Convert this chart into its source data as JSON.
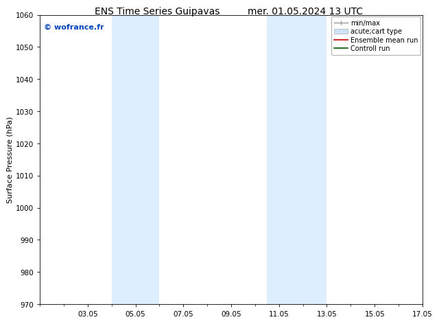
{
  "title_left": "ENS Time Series Guipavas",
  "title_right": "mer. 01.05.2024 13 UTC",
  "ylabel": "Surface Pressure (hPa)",
  "ylim": [
    970,
    1060
  ],
  "yticks": [
    970,
    980,
    990,
    1000,
    1010,
    1020,
    1030,
    1040,
    1050,
    1060
  ],
  "xlim": [
    1,
    17
  ],
  "xtick_labels": [
    "03.05",
    "05.05",
    "07.05",
    "09.05",
    "11.05",
    "13.05",
    "15.05",
    "17.05"
  ],
  "xtick_positions": [
    3,
    5,
    7,
    9,
    11,
    13,
    15,
    17
  ],
  "shaded_regions": [
    {
      "xmin": 4.0,
      "xmax": 6.0,
      "color": "#ddeeff"
    },
    {
      "xmin": 10.5,
      "xmax": 13.0,
      "color": "#ddeeff"
    }
  ],
  "watermark": "© wofrance.fr",
  "watermark_color": "#0044bb",
  "legend_entries": [
    {
      "label": "min/max",
      "color": "#aaaaaa",
      "lw": 1.2
    },
    {
      "label": "acute;cart type",
      "color": "#cce4f5",
      "lw": 8
    },
    {
      "label": "Ensemble mean run",
      "color": "#cc0000",
      "lw": 1.2
    },
    {
      "label": "Controll run",
      "color": "#005500",
      "lw": 1.2
    }
  ],
  "bg_color": "#ffffff",
  "plot_bg_color": "#ffffff",
  "title_fontsize": 10,
  "tick_fontsize": 7.5,
  "ylabel_fontsize": 8,
  "watermark_fontsize": 8,
  "legend_fontsize": 7
}
